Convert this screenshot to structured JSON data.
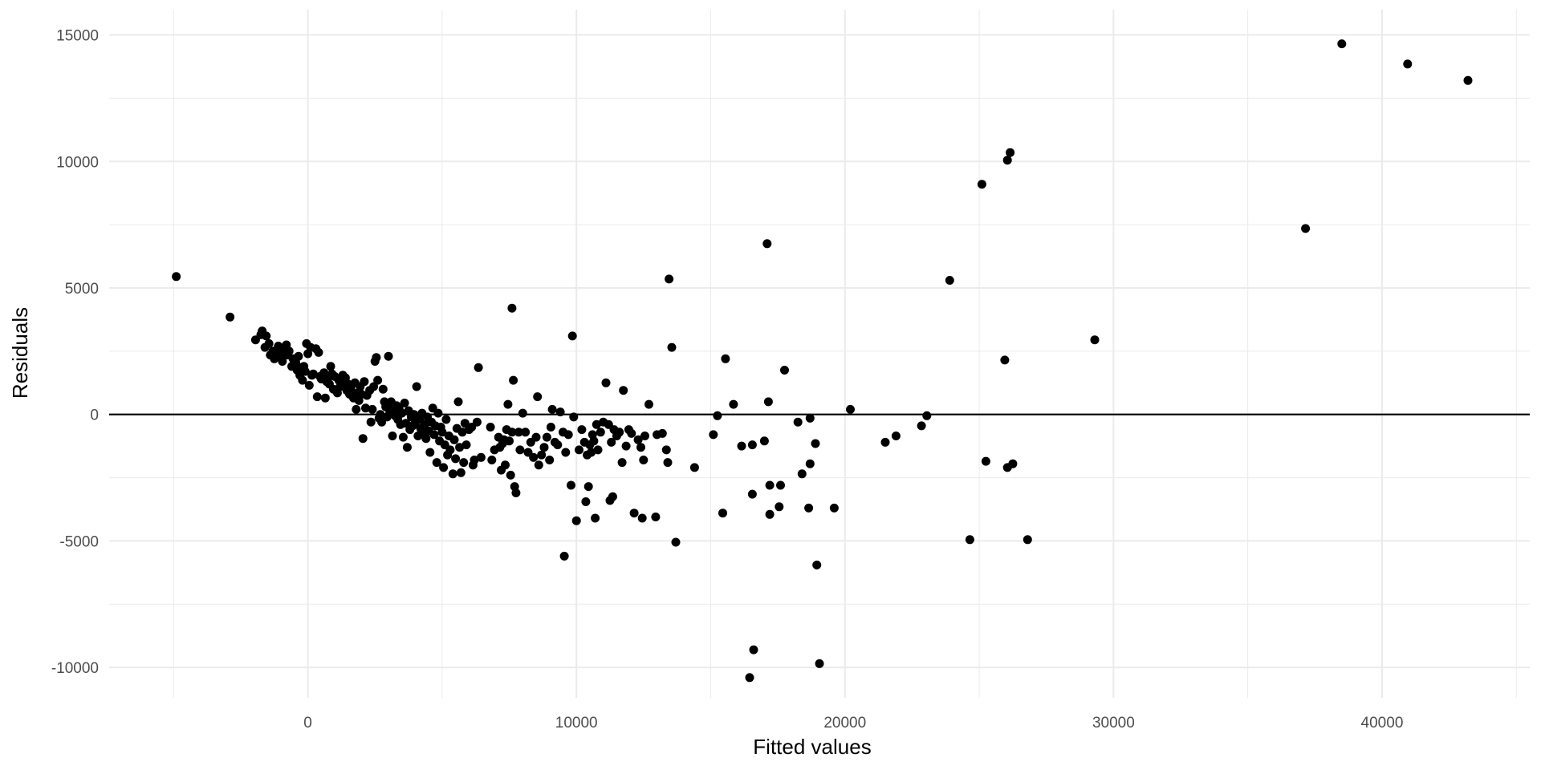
{
  "chart_data": {
    "type": "scatter",
    "title": "",
    "xlabel": "Fitted values",
    "ylabel": "Residuals",
    "xlim": [
      -7400,
      45500
    ],
    "ylim": [
      -11200,
      16000
    ],
    "x_ticks": [
      0,
      10000,
      20000,
      30000,
      40000
    ],
    "x_tick_labels": [
      "0",
      "10000",
      "20000",
      "30000",
      "40000"
    ],
    "y_ticks": [
      -10000,
      -5000,
      0,
      5000,
      10000,
      15000
    ],
    "y_tick_labels": [
      "-10000",
      "-5000",
      "0",
      "5000",
      "10000",
      "15000"
    ],
    "grid": true,
    "reference_line_y": 0,
    "colors": {
      "point": "#000000",
      "grid": "#ebebeb",
      "reference_line": "#000000"
    },
    "points": [
      [
        -4900,
        5450
      ],
      [
        -2900,
        3850
      ],
      [
        -1950,
        2950
      ],
      [
        -1750,
        3150
      ],
      [
        -1700,
        3300
      ],
      [
        -1600,
        2650
      ],
      [
        -1550,
        3100
      ],
      [
        -1450,
        2800
      ],
      [
        -1400,
        2350
      ],
      [
        -1300,
        2500
      ],
      [
        -1250,
        2200
      ],
      [
        -1150,
        2450
      ],
      [
        -1100,
        2700
      ],
      [
        -1000,
        2300
      ],
      [
        -950,
        2100
      ],
      [
        -900,
        2550
      ],
      [
        -800,
        2750
      ],
      [
        -750,
        2350
      ],
      [
        -700,
        2500
      ],
      [
        -600,
        1900
      ],
      [
        -550,
        2200
      ],
      [
        -450,
        2050
      ],
      [
        -400,
        1750
      ],
      [
        -350,
        2300
      ],
      [
        -300,
        1550
      ],
      [
        -250,
        1850
      ],
      [
        -200,
        1350
      ],
      [
        -150,
        1900
      ],
      [
        -100,
        1700
      ],
      [
        -50,
        2800
      ],
      [
        0,
        2400
      ],
      [
        50,
        1150
      ],
      [
        100,
        2650
      ],
      [
        150,
        1550
      ],
      [
        200,
        1600
      ],
      [
        300,
        2600
      ],
      [
        350,
        700
      ],
      [
        400,
        2450
      ],
      [
        450,
        1500
      ],
      [
        500,
        1400
      ],
      [
        600,
        1650
      ],
      [
        650,
        650
      ],
      [
        700,
        1300
      ],
      [
        750,
        1450
      ],
      [
        800,
        1200
      ],
      [
        850,
        1900
      ],
      [
        900,
        1600
      ],
      [
        950,
        1000
      ],
      [
        1000,
        1500
      ],
      [
        1100,
        850
      ],
      [
        1150,
        1350
      ],
      [
        1200,
        1100
      ],
      [
        1300,
        1550
      ],
      [
        1350,
        1300
      ],
      [
        1400,
        1450
      ],
      [
        1450,
        950
      ],
      [
        1500,
        1200
      ],
      [
        1550,
        800
      ],
      [
        1600,
        1050
      ],
      [
        1700,
        650
      ],
      [
        1750,
        1250
      ],
      [
        1800,
        200
      ],
      [
        1850,
        850
      ],
      [
        1900,
        550
      ],
      [
        1950,
        1100
      ],
      [
        2000,
        800
      ],
      [
        2050,
        -950
      ],
      [
        2100,
        1300
      ],
      [
        2150,
        250
      ],
      [
        2200,
        750
      ],
      [
        2300,
        950
      ],
      [
        2350,
        -300
      ],
      [
        2400,
        200
      ],
      [
        2450,
        1100
      ],
      [
        2500,
        2100
      ],
      [
        2550,
        2250
      ],
      [
        2600,
        1350
      ],
      [
        2650,
        -150
      ],
      [
        2700,
        0
      ],
      [
        2750,
        -300
      ],
      [
        2800,
        1000
      ],
      [
        2850,
        500
      ],
      [
        2900,
        300
      ],
      [
        2950,
        -100
      ],
      [
        3000,
        2300
      ],
      [
        3050,
        100
      ],
      [
        3100,
        500
      ],
      [
        3150,
        -850
      ],
      [
        3200,
        250
      ],
      [
        3250,
        -50
      ],
      [
        3300,
        350
      ],
      [
        3350,
        -200
      ],
      [
        3400,
        200
      ],
      [
        3450,
        -400
      ],
      [
        3500,
        50
      ],
      [
        3550,
        -900
      ],
      [
        3600,
        450
      ],
      [
        3650,
        -350
      ],
      [
        3700,
        -1300
      ],
      [
        3750,
        150
      ],
      [
        3800,
        -600
      ],
      [
        3850,
        -100
      ],
      [
        3900,
        -450
      ],
      [
        3950,
        0
      ],
      [
        4000,
        -300
      ],
      [
        4050,
        1100
      ],
      [
        4100,
        -850
      ],
      [
        4150,
        -200
      ],
      [
        4200,
        -550
      ],
      [
        4250,
        50
      ],
      [
        4300,
        -750
      ],
      [
        4350,
        -400
      ],
      [
        4400,
        -950
      ],
      [
        4450,
        -100
      ],
      [
        4500,
        -650
      ],
      [
        4550,
        -1500
      ],
      [
        4600,
        -300
      ],
      [
        4650,
        250
      ],
      [
        4700,
        -800
      ],
      [
        4750,
        -450
      ],
      [
        4800,
        -1900
      ],
      [
        4850,
        50
      ],
      [
        4900,
        -1050
      ],
      [
        4950,
        -500
      ],
      [
        5000,
        -700
      ],
      [
        5050,
        -2100
      ],
      [
        5100,
        -1200
      ],
      [
        5150,
        -200
      ],
      [
        5200,
        -1600
      ],
      [
        5250,
        -850
      ],
      [
        5300,
        -1400
      ],
      [
        5400,
        -2350
      ],
      [
        5450,
        -1000
      ],
      [
        5500,
        -1750
      ],
      [
        5550,
        -550
      ],
      [
        5600,
        500
      ],
      [
        5650,
        -1300
      ],
      [
        5700,
        -2300
      ],
      [
        5750,
        -700
      ],
      [
        5800,
        -1900
      ],
      [
        5850,
        -350
      ],
      [
        5900,
        -1200
      ],
      [
        6000,
        -600
      ],
      [
        6100,
        -500
      ],
      [
        6150,
        -2000
      ],
      [
        6200,
        -1800
      ],
      [
        6300,
        -300
      ],
      [
        6350,
        1850
      ],
      [
        6450,
        -1700
      ],
      [
        6800,
        -500
      ],
      [
        6850,
        -1800
      ],
      [
        6950,
        -1400
      ],
      [
        7100,
        -900
      ],
      [
        7150,
        -1300
      ],
      [
        7200,
        -2200
      ],
      [
        7250,
        -1150
      ],
      [
        7300,
        -1000
      ],
      [
        7350,
        -2000
      ],
      [
        7400,
        -600
      ],
      [
        7450,
        400
      ],
      [
        7500,
        -1050
      ],
      [
        7550,
        -2400
      ],
      [
        7600,
        -700
      ],
      [
        7650,
        1350
      ],
      [
        7700,
        -2850
      ],
      [
        7750,
        -3100
      ],
      [
        7600,
        4200
      ],
      [
        7850,
        -700
      ],
      [
        7900,
        -1400
      ],
      [
        8000,
        50
      ],
      [
        8100,
        -700
      ],
      [
        8200,
        -1500
      ],
      [
        8300,
        -1100
      ],
      [
        8400,
        -1700
      ],
      [
        8500,
        -900
      ],
      [
        8550,
        700
      ],
      [
        8600,
        -2000
      ],
      [
        8700,
        -1600
      ],
      [
        8800,
        -1300
      ],
      [
        8900,
        -900
      ],
      [
        9000,
        -1800
      ],
      [
        9050,
        -500
      ],
      [
        9100,
        200
      ],
      [
        9200,
        -1100
      ],
      [
        9300,
        -1200
      ],
      [
        9400,
        100
      ],
      [
        9500,
        -700
      ],
      [
        9550,
        -5600
      ],
      [
        9600,
        -1500
      ],
      [
        9700,
        -800
      ],
      [
        9800,
        -2800
      ],
      [
        9850,
        3100
      ],
      [
        9900,
        -100
      ],
      [
        10000,
        -4200
      ],
      [
        10100,
        -1400
      ],
      [
        10200,
        -600
      ],
      [
        10300,
        -1100
      ],
      [
        10350,
        -3450
      ],
      [
        10400,
        -1600
      ],
      [
        10450,
        -2850
      ],
      [
        10500,
        -1200
      ],
      [
        10550,
        -1500
      ],
      [
        10600,
        -800
      ],
      [
        10650,
        -1050
      ],
      [
        10700,
        -4100
      ],
      [
        10750,
        -400
      ],
      [
        10800,
        -1400
      ],
      [
        10900,
        -700
      ],
      [
        11000,
        -300
      ],
      [
        11100,
        1250
      ],
      [
        11200,
        -400
      ],
      [
        11250,
        -3400
      ],
      [
        11300,
        -1100
      ],
      [
        11350,
        -3250
      ],
      [
        11400,
        -600
      ],
      [
        11500,
        -850
      ],
      [
        11600,
        -700
      ],
      [
        11700,
        -1900
      ],
      [
        11750,
        950
      ],
      [
        11850,
        -1250
      ],
      [
        11950,
        -600
      ],
      [
        12050,
        -750
      ],
      [
        12150,
        -3900
      ],
      [
        12300,
        -1000
      ],
      [
        12400,
        -1300
      ],
      [
        12450,
        -4100
      ],
      [
        12500,
        -1800
      ],
      [
        12550,
        -850
      ],
      [
        12700,
        400
      ],
      [
        12950,
        -4050
      ],
      [
        13000,
        -800
      ],
      [
        13200,
        -750
      ],
      [
        13350,
        -1400
      ],
      [
        13400,
        -1900
      ],
      [
        13450,
        5350
      ],
      [
        13550,
        2650
      ],
      [
        13700,
        -5050
      ],
      [
        14400,
        -2100
      ],
      [
        15100,
        -800
      ],
      [
        15250,
        -50
      ],
      [
        15450,
        -3900
      ],
      [
        15550,
        2200
      ],
      [
        15850,
        400
      ],
      [
        16150,
        -1250
      ],
      [
        16450,
        -10400
      ],
      [
        16550,
        -1200
      ],
      [
        16600,
        -9300
      ],
      [
        16550,
        -3150
      ],
      [
        17000,
        -1050
      ],
      [
        17100,
        6750
      ],
      [
        17150,
        500
      ],
      [
        17200,
        -2800
      ],
      [
        17200,
        -3950
      ],
      [
        17600,
        -2800
      ],
      [
        17550,
        -3650
      ],
      [
        17750,
        1750
      ],
      [
        18250,
        -300
      ],
      [
        18400,
        -2350
      ],
      [
        18650,
        -3700
      ],
      [
        18700,
        -150
      ],
      [
        18700,
        -1950
      ],
      [
        18900,
        -1150
      ],
      [
        18950,
        -5950
      ],
      [
        19050,
        -9850
      ],
      [
        19600,
        -3700
      ],
      [
        20200,
        200
      ],
      [
        21500,
        -1100
      ],
      [
        21900,
        -850
      ],
      [
        22850,
        -450
      ],
      [
        23050,
        -50
      ],
      [
        23900,
        5300
      ],
      [
        24650,
        -4950
      ],
      [
        25100,
        9100
      ],
      [
        25250,
        -1850
      ],
      [
        25950,
        2150
      ],
      [
        26050,
        -2100
      ],
      [
        26050,
        10050
      ],
      [
        26150,
        10350
      ],
      [
        26250,
        -1950
      ],
      [
        26800,
        -4950
      ],
      [
        29300,
        2950
      ],
      [
        37150,
        7350
      ],
      [
        38500,
        14650
      ],
      [
        40950,
        13850
      ],
      [
        43200,
        13200
      ]
    ]
  }
}
